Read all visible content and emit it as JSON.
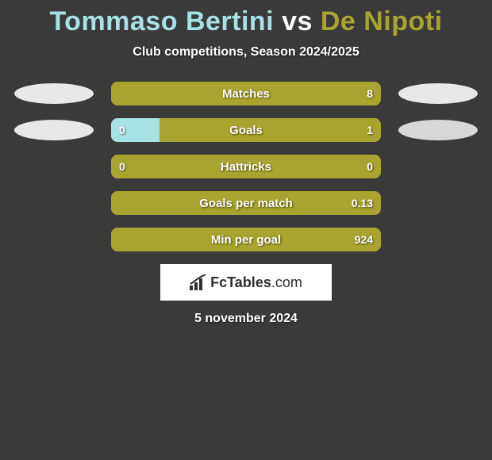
{
  "title": {
    "parts": [
      {
        "text": "Tommaso Bertini",
        "color": "#a6e2e4"
      },
      {
        "text": " vs ",
        "color": "#ffffff"
      },
      {
        "text": "De Nipoti",
        "color": "#a9a42f"
      }
    ]
  },
  "subtitle": "Club competitions, Season 2024/2025",
  "colors": {
    "player1": "#a6e2e4",
    "player2": "#a9a42f",
    "ellipse1": "#e8e8e8",
    "ellipse2a": "#e8e8e8",
    "ellipse2b": "#d8d8d8"
  },
  "rows": [
    {
      "label": "Matches",
      "left_val": "",
      "right_val": "8",
      "left_pct": 0,
      "right_pct": 100,
      "base_color": "#a9a42f",
      "show_ellipses": true,
      "ellipse_left_color": "#e8e8e8",
      "ellipse_right_color": "#e8e8e8"
    },
    {
      "label": "Goals",
      "left_val": "0",
      "right_val": "1",
      "left_pct": 18,
      "right_pct": 82,
      "base_color": "#a9a42f",
      "left_fill_color": "#a6e2e4",
      "show_ellipses": true,
      "ellipse_left_color": "#e8e8e8",
      "ellipse_right_color": "#d8d8d8"
    },
    {
      "label": "Hattricks",
      "left_val": "0",
      "right_val": "0",
      "left_pct": 0,
      "right_pct": 100,
      "base_color": "#a9a42f",
      "show_ellipses": false
    },
    {
      "label": "Goals per match",
      "left_val": "",
      "right_val": "0.13",
      "left_pct": 0,
      "right_pct": 100,
      "base_color": "#a9a42f",
      "show_ellipses": false
    },
    {
      "label": "Min per goal",
      "left_val": "",
      "right_val": "924",
      "left_pct": 0,
      "right_pct": 100,
      "base_color": "#a9a42f",
      "show_ellipses": false
    }
  ],
  "logo": {
    "brand": "FcTables",
    "domain": ".com"
  },
  "footer_date": "5 november 2024"
}
